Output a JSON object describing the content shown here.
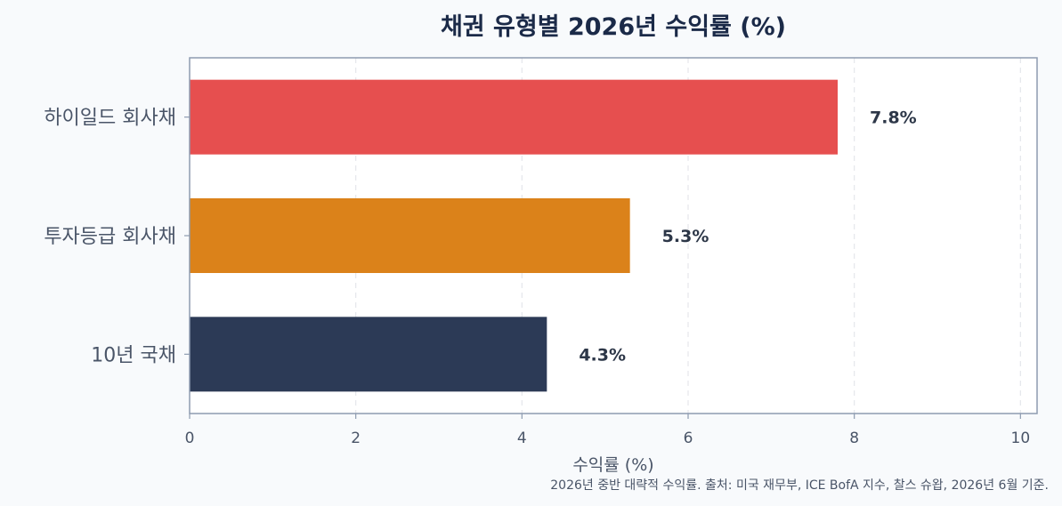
{
  "chart_data": {
    "type": "bar",
    "orientation": "horizontal",
    "title": "채권 유형별 2026년 수익률 (%)",
    "xlabel": "수익률 (%)",
    "ylabel": "",
    "xlim": [
      0,
      10.2
    ],
    "xticks": [
      0,
      2,
      4,
      6,
      8,
      10
    ],
    "categories": [
      "하이일드 회사채",
      "투자등급 회사채",
      "10년 국채"
    ],
    "values": [
      7.8,
      5.3,
      4.3
    ],
    "value_labels": [
      "7.8%",
      "5.3%",
      "4.3%"
    ],
    "bar_colors": [
      "#e64f4f",
      "#db821a",
      "#2c3a56"
    ],
    "grid": {
      "x": true,
      "y": false,
      "style": "dashed"
    },
    "legend": "none",
    "caption": "2026년 중반 대략적 수익률. 출처: 미국 재무부, ICE BofA 지수, 찰스 슈왑, 2026년 6월 기준."
  },
  "colors": {
    "background": "#f8fafc",
    "plot_background": "#ffffff",
    "axes_border": "#8d9bb0",
    "title": "#1b2a48",
    "text": "#4a5568",
    "label_text": "#2d3748",
    "grid": "#e5e7eb"
  }
}
